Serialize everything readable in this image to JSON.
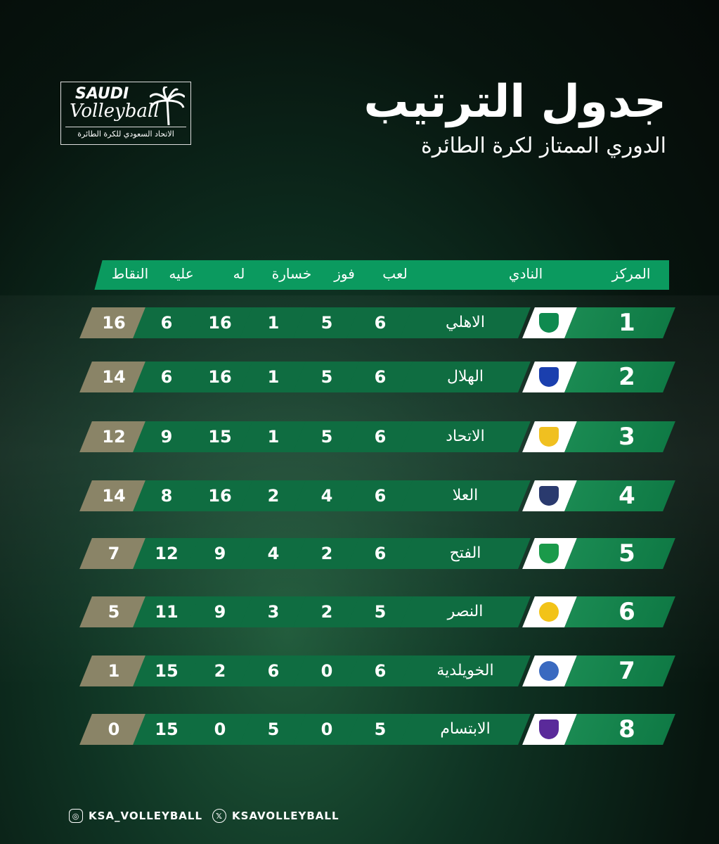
{
  "background": "dark green volleyball court with CHAMPIONSHIP net banner",
  "colors": {
    "header": "#0b9a5f",
    "cell": "#0f6d41",
    "points_cell": "#8a8467",
    "logo_cell": "#ffffff",
    "rank_cell": "#1a8a52"
  },
  "federation_logo": {
    "line1": "SAUDI",
    "line2": "Volleyball",
    "line3": "الاتحاد السعودي للكرة الطائرة"
  },
  "title": "جدول الترتيب",
  "subtitle": "الدوري الممتاز لكرة الطائرة",
  "columns": {
    "rank": "المركز",
    "club": "النادي",
    "played": "لعب",
    "won": "فوز",
    "lost": "خسارة",
    "for": "له",
    "against": "عليه",
    "points": "النقاط"
  },
  "rows": [
    {
      "rank": "1",
      "club": "الاهلي",
      "logo": "al-ahli-crest-icon",
      "played": "6",
      "won": "5",
      "lost": "1",
      "for": "16",
      "against": "6",
      "points": "16"
    },
    {
      "rank": "2",
      "club": "الهلال",
      "logo": "al-hilal-crest-icon",
      "played": "6",
      "won": "5",
      "lost": "1",
      "for": "16",
      "against": "6",
      "points": "14"
    },
    {
      "rank": "3",
      "club": "الاتحاد",
      "logo": "al-ittihad-crest-icon",
      "played": "6",
      "won": "5",
      "lost": "1",
      "for": "15",
      "against": "9",
      "points": "12"
    },
    {
      "rank": "4",
      "club": "العلا",
      "logo": "alula-crest-icon",
      "played": "6",
      "won": "4",
      "lost": "2",
      "for": "16",
      "against": "8",
      "points": "14"
    },
    {
      "rank": "5",
      "club": "الفتح",
      "logo": "al-fateh-crest-icon",
      "played": "6",
      "won": "2",
      "lost": "4",
      "for": "9",
      "against": "12",
      "points": "7"
    },
    {
      "rank": "6",
      "club": "النصر",
      "logo": "al-nassr-crest-icon",
      "played": "5",
      "won": "2",
      "lost": "3",
      "for": "9",
      "against": "11",
      "points": "5"
    },
    {
      "rank": "7",
      "club": "الخويلدية",
      "logo": "al-khuwaildiya-crest-icon",
      "played": "6",
      "won": "0",
      "lost": "6",
      "for": "2",
      "against": "15",
      "points": "1"
    },
    {
      "rank": "8",
      "club": "الابتسام",
      "logo": "al-ibtisam-crest-icon",
      "played": "5",
      "won": "0",
      "lost": "5",
      "for": "0",
      "against": "15",
      "points": "0"
    }
  ],
  "footer": {
    "instagram_icon": "instagram-icon",
    "instagram": "KSA_VOLLEYBALL",
    "x_icon": "x-icon",
    "x": "KSAVOLLEYBALL"
  }
}
